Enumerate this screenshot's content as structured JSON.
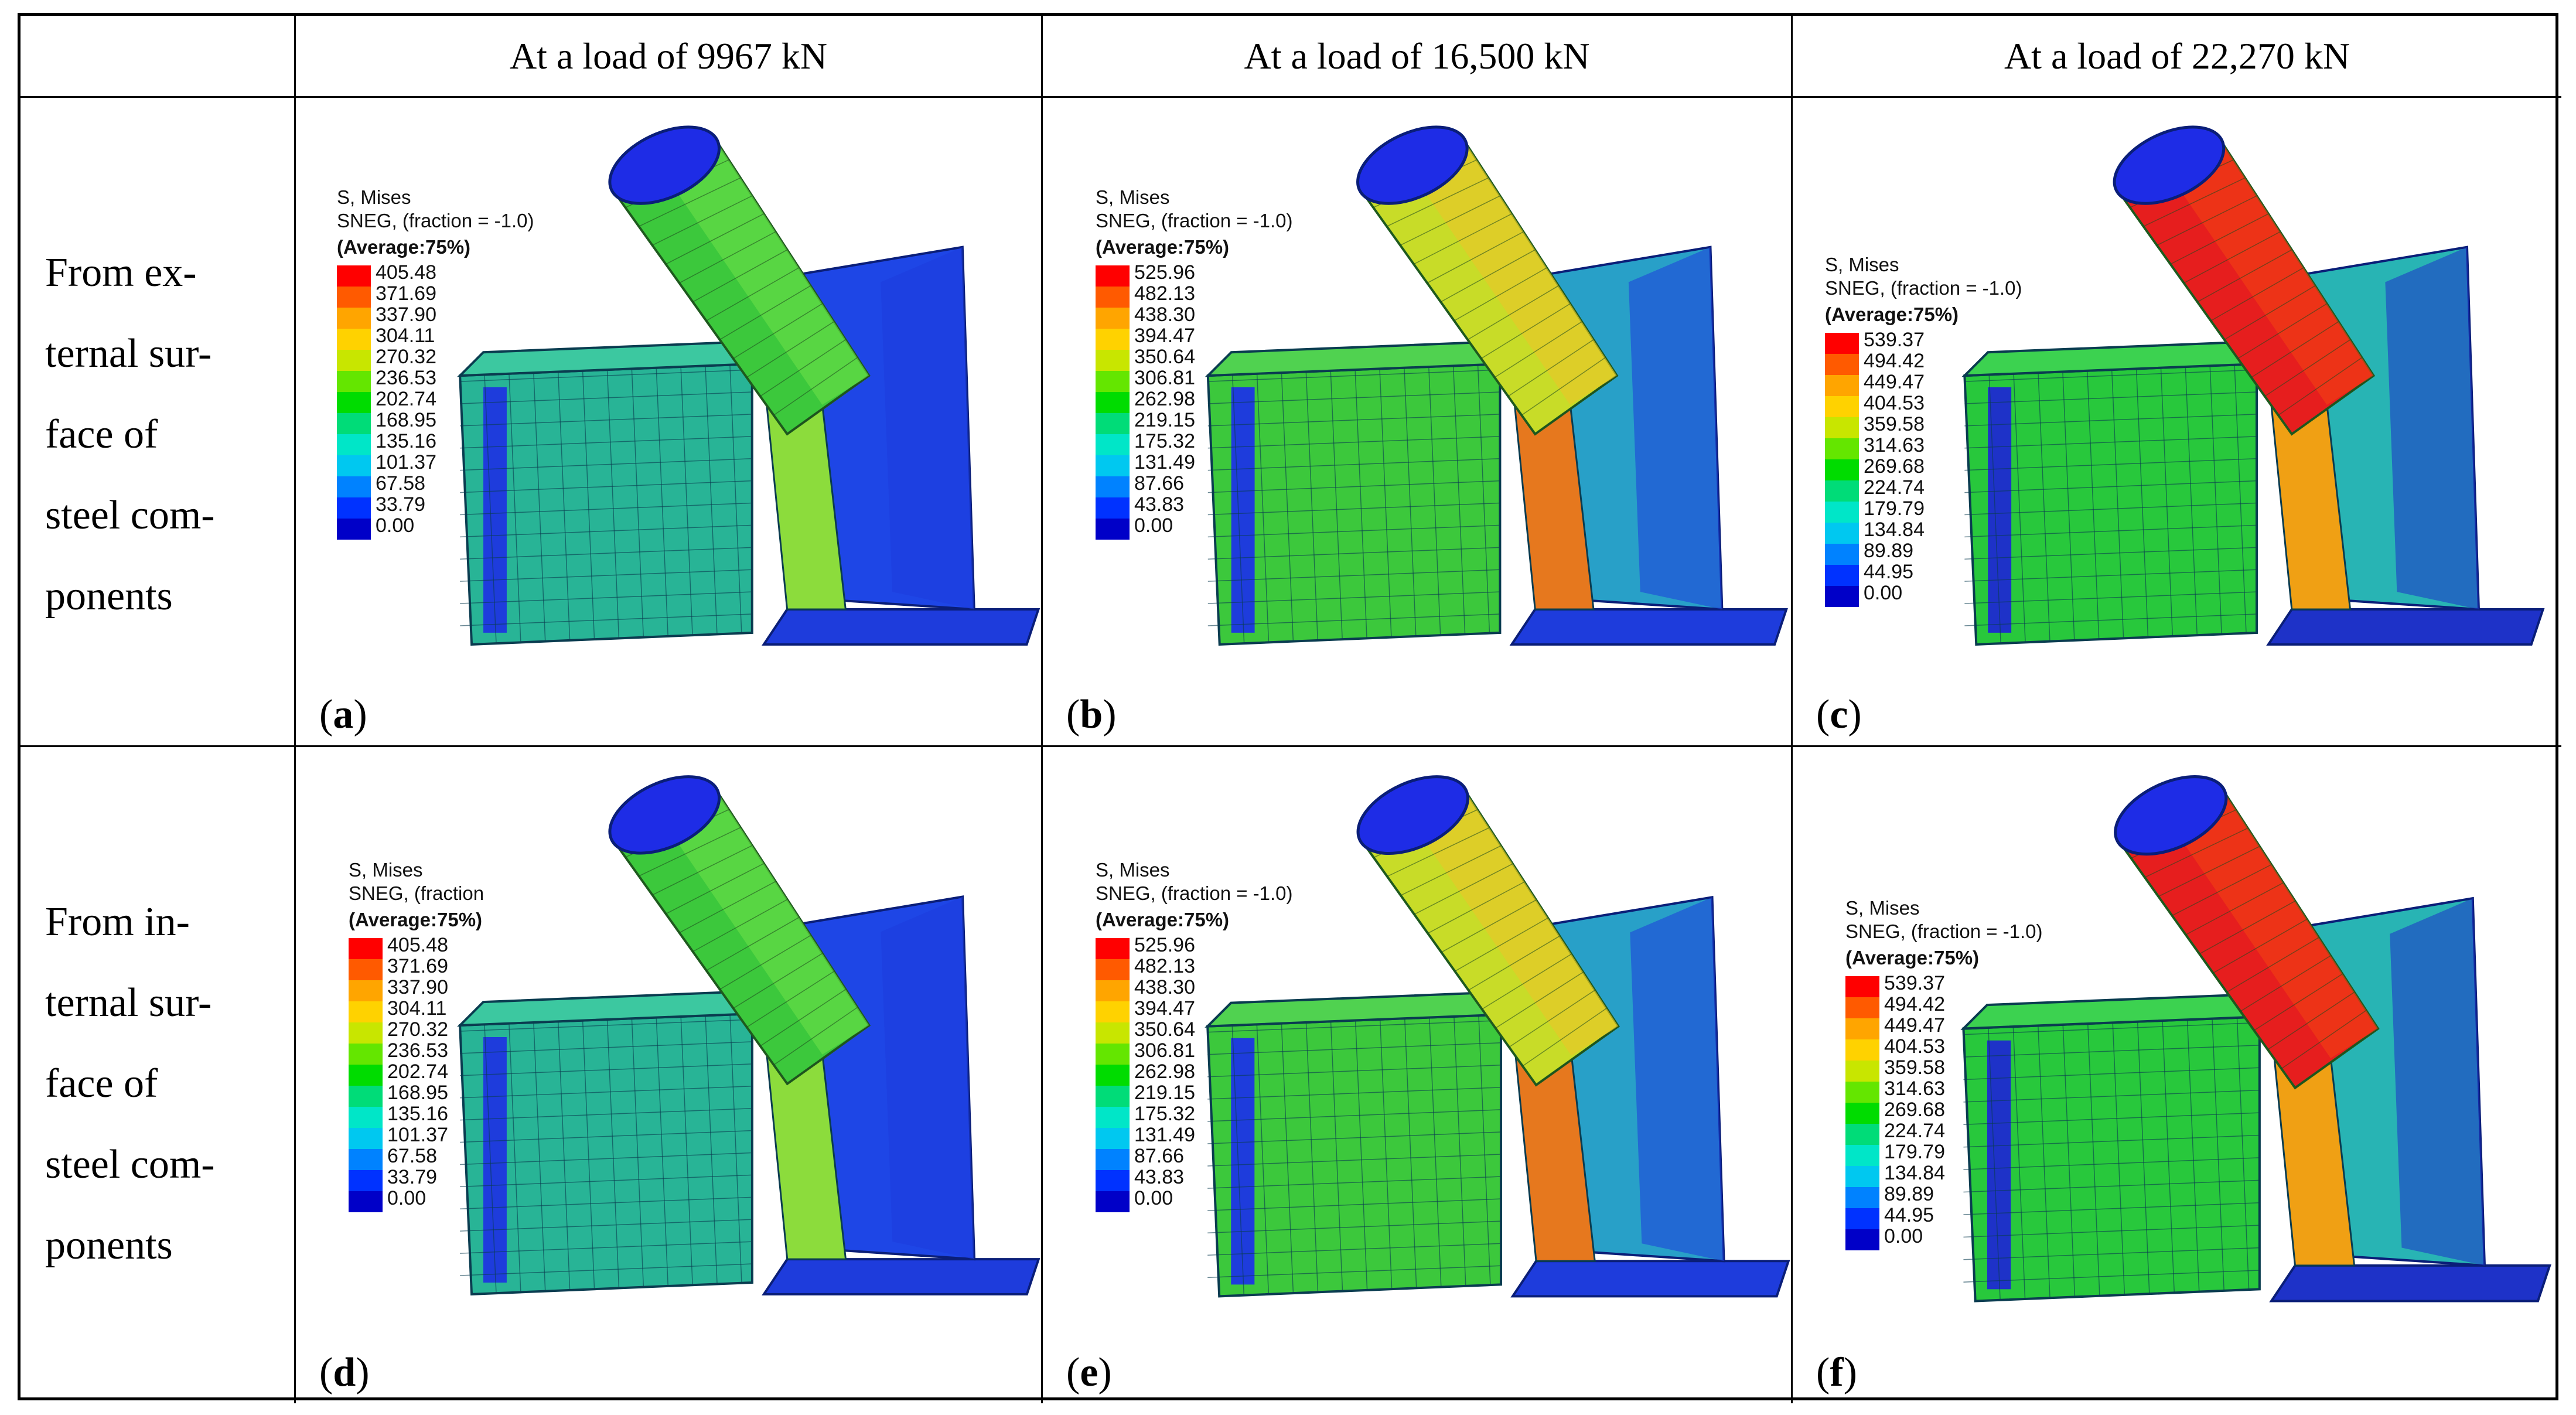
{
  "header": {
    "blank": "",
    "columns": [
      "At a load of 9967 kN",
      "At a load of 16,500 kN",
      "At a load of 22,270 kN"
    ]
  },
  "rows": [
    {
      "label_lines": [
        "From ex-",
        "ternal sur-",
        "face of",
        "steel com-",
        "ponents"
      ]
    },
    {
      "label_lines": [
        "From in-",
        "ternal sur-",
        "face of",
        "steel com-",
        "ponents"
      ]
    }
  ],
  "legend_colors": [
    "#ff0000",
    "#ff5a00",
    "#ffa500",
    "#ffd200",
    "#c8e600",
    "#64e600",
    "#00dc00",
    "#00dc78",
    "#00e6c8",
    "#00c8f0",
    "#0082ff",
    "#0032ff",
    "#0000c8"
  ],
  "panels": [
    {
      "id": "a",
      "legend": {
        "title1": "S, Mises",
        "title2": "SNEG, (fraction = -1.0)",
        "title3": "(Average:75%)",
        "values": [
          "405.48",
          "371.69",
          "337.90",
          "304.11",
          "270.32",
          "236.53",
          "202.74",
          "168.95",
          "135.16",
          "101.37",
          "67.58",
          "33.79",
          "0.00"
        ]
      }
    },
    {
      "id": "b",
      "legend": {
        "title1": "S, Mises",
        "title2": "SNEG, (fraction = -1.0)",
        "title3": "(Average:75%)",
        "values": [
          "525.96",
          "482.13",
          "438.30",
          "394.47",
          "350.64",
          "306.81",
          "262.98",
          "219.15",
          "175.32",
          "131.49",
          "87.66",
          "43.83",
          "0.00"
        ]
      }
    },
    {
      "id": "c",
      "legend": {
        "title1": "S, Mises",
        "title2": "SNEG, (fraction = -1.0)",
        "title3": "(Average:75%)",
        "values": [
          "539.37",
          "494.42",
          "449.47",
          "404.53",
          "359.58",
          "314.63",
          "269.68",
          "224.74",
          "179.79",
          "134.84",
          "89.89",
          "44.95",
          "0.00"
        ]
      }
    },
    {
      "id": "d",
      "legend": {
        "title1": "S, Mises",
        "title2": "SNEG, (fraction",
        "title3": "(Average:75%)",
        "values": [
          "405.48",
          "371.69",
          "337.90",
          "304.11",
          "270.32",
          "236.53",
          "202.74",
          "168.95",
          "135.16",
          "101.37",
          "67.58",
          "33.79",
          "0.00"
        ]
      }
    },
    {
      "id": "e",
      "legend": {
        "title1": "S, Mises",
        "title2": "SNEG, (fraction = -1.0)",
        "title3": "(Average:75%)",
        "values": [
          "525.96",
          "482.13",
          "438.30",
          "394.47",
          "350.64",
          "306.81",
          "262.98",
          "219.15",
          "175.32",
          "131.49",
          "87.66",
          "43.83",
          "0.00"
        ]
      }
    },
    {
      "id": "f",
      "legend": {
        "title1": "S, Mises",
        "title2": "SNEG, (fraction = -1.0)",
        "title3": "(Average:75%)",
        "values": [
          "539.37",
          "494.42",
          "449.47",
          "404.53",
          "359.58",
          "314.63",
          "269.68",
          "224.74",
          "179.79",
          "134.84",
          "89.89",
          "44.95",
          "0.00"
        ]
      }
    }
  ]
}
